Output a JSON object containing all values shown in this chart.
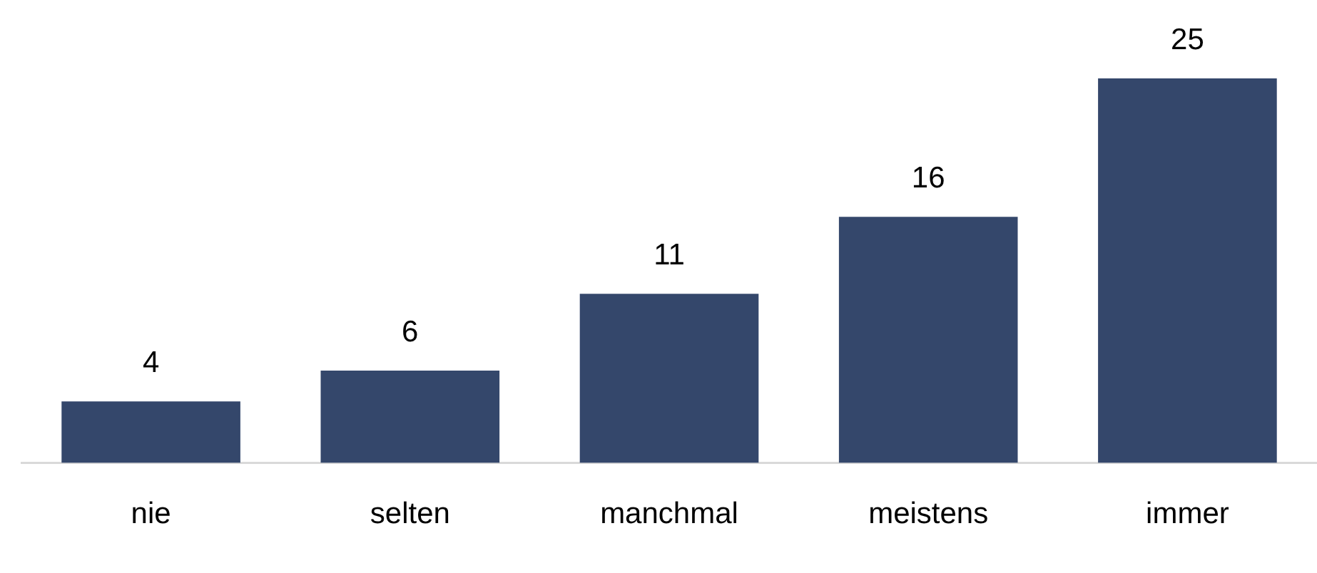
{
  "chart_data": {
    "type": "bar",
    "categories": [
      "nie",
      "selten",
      "manchmal",
      "meistens",
      "immer"
    ],
    "values": [
      4,
      6,
      11,
      16,
      25
    ],
    "color": "#34476b",
    "data_labels": true,
    "grid": false,
    "legend": false
  }
}
